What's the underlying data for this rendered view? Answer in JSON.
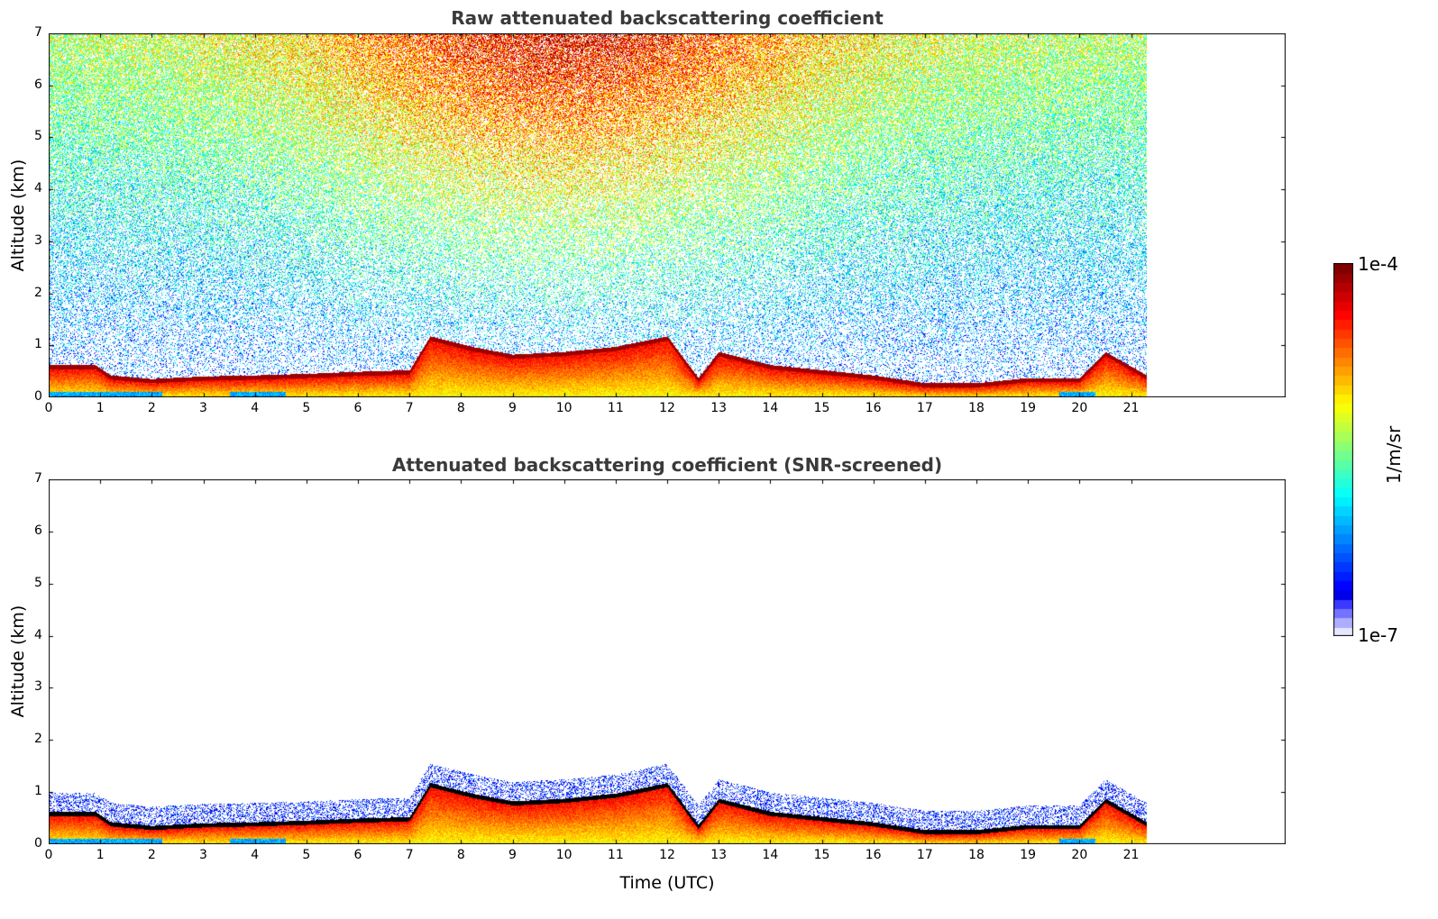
{
  "chart_data": [
    {
      "type": "heatmap",
      "title": "Raw attenuated backscattering coefficient",
      "xlabel": "",
      "ylabel": "Altitude (km)",
      "xlim": [
        0,
        24
      ],
      "ylim": [
        0,
        7
      ],
      "x_ticks": [
        "0",
        "1",
        "2",
        "3",
        "4",
        "5",
        "6",
        "7",
        "8",
        "9",
        "10",
        "11",
        "12",
        "13",
        "14",
        "15",
        "16",
        "17",
        "18",
        "19",
        "20",
        "21"
      ],
      "y_ticks": [
        "0",
        "1",
        "2",
        "3",
        "4",
        "5",
        "6",
        "7"
      ],
      "data_end_time": 21.3,
      "mixing_layer_top": [
        [
          0,
          0.55
        ],
        [
          0.9,
          0.55
        ],
        [
          1.2,
          0.35
        ],
        [
          2,
          0.28
        ],
        [
          3,
          0.33
        ],
        [
          4,
          0.35
        ],
        [
          5,
          0.38
        ],
        [
          6,
          0.42
        ],
        [
          7,
          0.45
        ],
        [
          7.4,
          1.1
        ],
        [
          8.2,
          0.9
        ],
        [
          9,
          0.75
        ],
        [
          10,
          0.8
        ],
        [
          11,
          0.9
        ],
        [
          12,
          1.1
        ],
        [
          12.6,
          0.3
        ],
        [
          13,
          0.8
        ],
        [
          14,
          0.55
        ],
        [
          15,
          0.45
        ],
        [
          16,
          0.35
        ],
        [
          17,
          0.2
        ],
        [
          18,
          0.2
        ],
        [
          19,
          0.3
        ],
        [
          20,
          0.3
        ],
        [
          20.5,
          0.8
        ],
        [
          21.3,
          0.35
        ]
      ]
    },
    {
      "type": "heatmap",
      "title": "Attenuated backscattering coefficient (SNR-screened)",
      "xlabel": "Time (UTC)",
      "ylabel": "Altitude (km)",
      "xlim": [
        0,
        24
      ],
      "ylim": [
        0,
        7
      ],
      "x_ticks": [
        "0",
        "1",
        "2",
        "3",
        "4",
        "5",
        "6",
        "7",
        "8",
        "9",
        "10",
        "11",
        "12",
        "13",
        "14",
        "15",
        "16",
        "17",
        "18",
        "19",
        "20",
        "21"
      ],
      "y_ticks": [
        "0",
        "1",
        "2",
        "3",
        "4",
        "5",
        "6",
        "7"
      ],
      "data_end_time": 21.3
    }
  ],
  "colorbar": {
    "max_label": "1e-4",
    "min_label": "1e-7",
    "unit_label": "1/m/sr",
    "colormap": "jet"
  }
}
